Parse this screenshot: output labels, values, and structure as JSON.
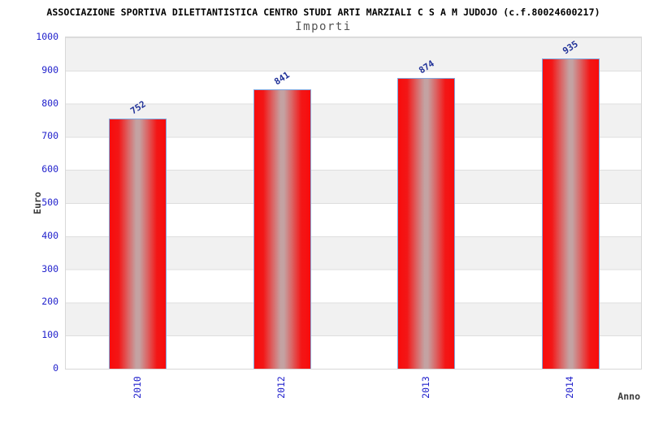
{
  "header": {
    "title": "ASSOCIAZIONE SPORTIVA DILETTANTISTICA CENTRO STUDI ARTI MARZIALI C S A M JUDOJO (c.f.80024600217)",
    "subtitle": "Importi"
  },
  "chart_data": {
    "type": "bar",
    "title": "Importi",
    "categories": [
      "2010",
      "2012",
      "2013",
      "2014"
    ],
    "values": [
      752,
      841,
      874,
      935
    ],
    "value_labels": [
      "752",
      "841",
      "874",
      "935"
    ],
    "xlabel": "Anno",
    "ylabel": "Euro",
    "ylim": [
      0,
      1000
    ],
    "yticks": [
      0,
      100,
      200,
      300,
      400,
      500,
      600,
      700,
      800,
      900,
      1000
    ],
    "grid": true,
    "legend": false,
    "bands_alternating": true
  },
  "colors": {
    "bar_red": "#f80c0c",
    "bar_center_sheen": "#c4a2a2",
    "bar_border": "#7fa8e0",
    "tick_label_blue": "#2222cc",
    "value_label_navy": "#223399",
    "band_gray": "#f1f1f1",
    "band_white": "#ffffff",
    "plot_border": "#d8d8d8",
    "title_black": "#000000",
    "subtitle_gray": "#545454",
    "axis_label_dark": "#3a3a3a"
  }
}
